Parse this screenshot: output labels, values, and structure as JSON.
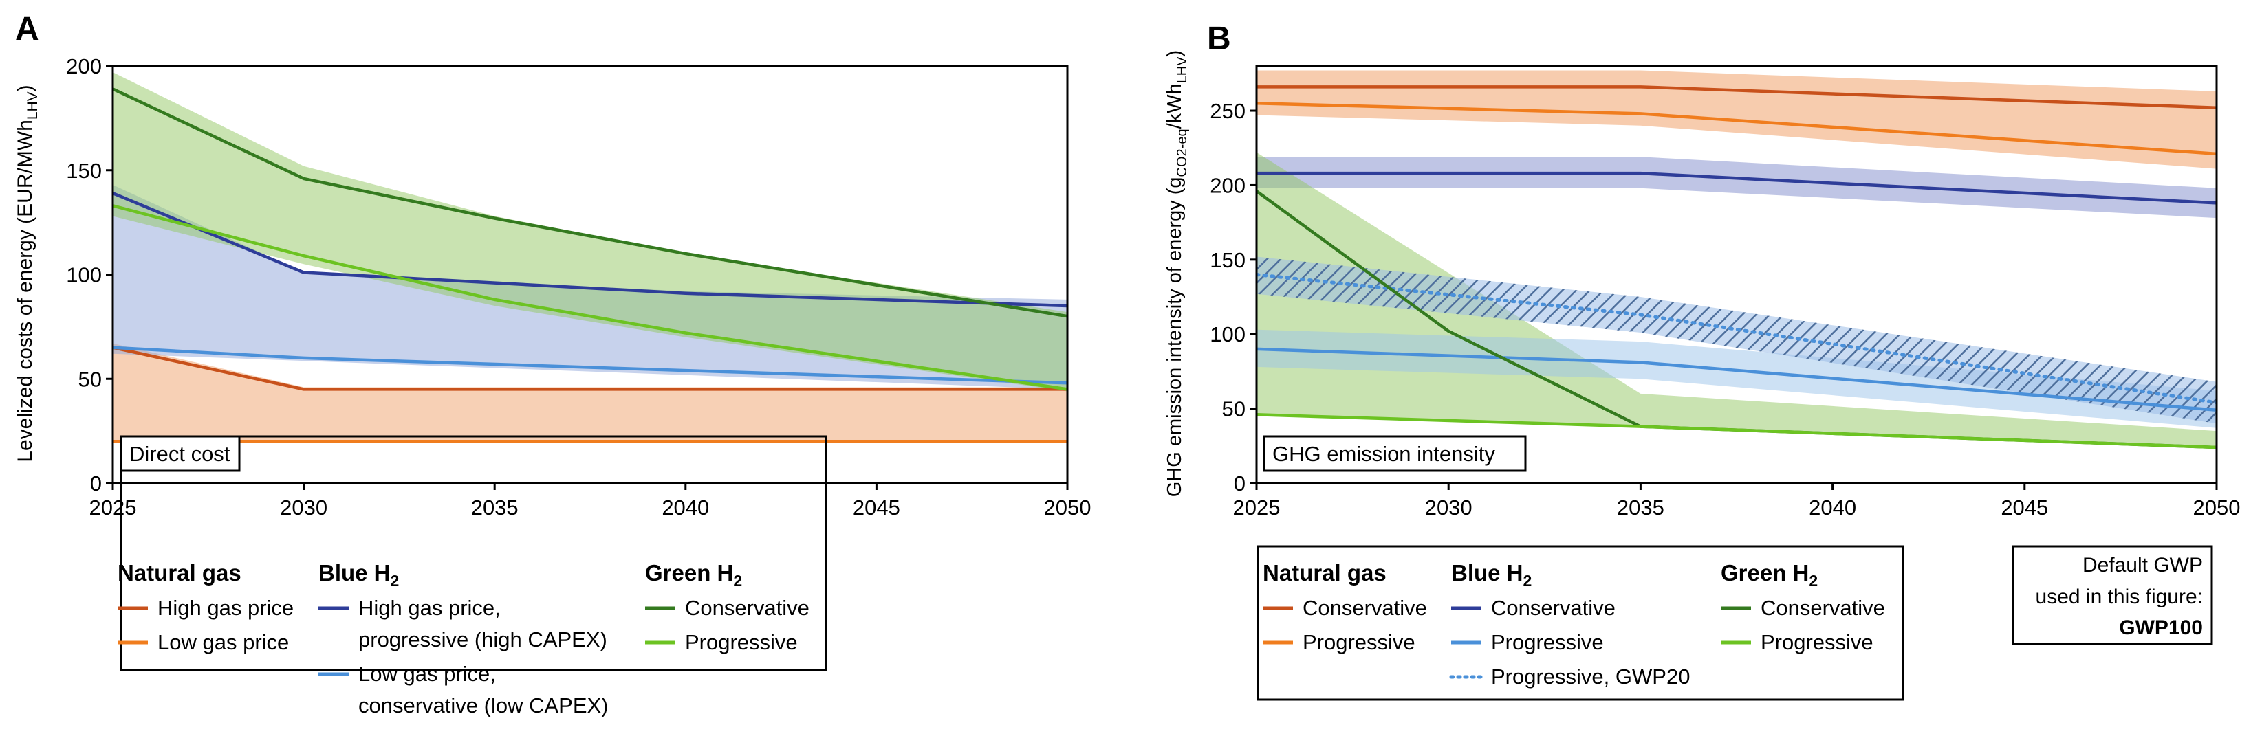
{
  "panel_a": {
    "letter": "A",
    "box_label": "Direct cost",
    "legend": {
      "groups": [
        {
          "title": "Natural gas",
          "entries": [
            {
              "label": "High gas price",
              "color": "#c8511b",
              "dash": false
            },
            {
              "label": "Low gas price",
              "color": "#f07d1e",
              "dash": false
            }
          ]
        },
        {
          "title": "Blue H",
          "title_sub": "2",
          "entries": [
            {
              "label": "High gas price,",
              "label2": "progressive (high CAPEX)",
              "color": "#2e3d99",
              "dash": false
            },
            {
              "label": "Low gas price,",
              "label2": "conservative (low CAPEX)",
              "color": "#4a90d9",
              "dash": false
            }
          ]
        },
        {
          "title": "Green H",
          "title_sub": "2",
          "entries": [
            {
              "label": "Conservative",
              "color": "#347a1f",
              "dash": false
            },
            {
              "label": "Progressive",
              "color": "#6cc322",
              "dash": false
            }
          ]
        }
      ]
    }
  },
  "panel_b": {
    "letter": "B",
    "box_label": "GHG emission intensity",
    "legend": {
      "groups": [
        {
          "title": "Natural gas",
          "entries": [
            {
              "label": "Conservative",
              "color": "#c8511b",
              "dash": false
            },
            {
              "label": "Progressive",
              "color": "#f07d1e",
              "dash": false
            }
          ]
        },
        {
          "title": "Blue H",
          "title_sub": "2",
          "entries": [
            {
              "label": "Conservative",
              "color": "#2e3d99",
              "dash": false
            },
            {
              "label": "Progressive",
              "color": "#4a90d9",
              "dash": false
            },
            {
              "label": "Progressive, GWP20",
              "color": "#4a90d9",
              "dash": true
            }
          ]
        },
        {
          "title": "Green H",
          "title_sub": "2",
          "entries": [
            {
              "label": "Conservative",
              "color": "#347a1f",
              "dash": false
            },
            {
              "label": "Progressive",
              "color": "#6cc322",
              "dash": false
            }
          ]
        }
      ]
    },
    "gwp_note": {
      "line1": "Default GWP",
      "line2": "used in this figure:",
      "line3": "GWP100"
    }
  },
  "chart_data": [
    {
      "type": "line",
      "title": "Direct cost",
      "xlabel": "",
      "ylabel": "Levelized costs of energy (EUR/MWh",
      "ylabel_sub": "LHV",
      "ylabel_end": ")",
      "xlim": [
        2025,
        2050
      ],
      "ylim": [
        0,
        200
      ],
      "xticks": [
        2025,
        2030,
        2035,
        2040,
        2045,
        2050
      ],
      "yticks": [
        0,
        50,
        100,
        150,
        200
      ],
      "bands": [
        {
          "name": "Natural gas range",
          "color": "#f0a26b",
          "opacity": 0.5,
          "upper": [
            [
              2025,
              67
            ],
            [
              2030,
              46
            ],
            [
              2050,
              46
            ]
          ],
          "lower": [
            [
              2025,
              20
            ],
            [
              2050,
              20
            ]
          ]
        },
        {
          "name": "Blue H2 range",
          "color": "#8fa6d9",
          "opacity": 0.5,
          "upper": [
            [
              2025,
              143
            ],
            [
              2030,
              101
            ],
            [
              2040,
              92
            ],
            [
              2050,
              88
            ]
          ],
          "lower": [
            [
              2025,
              62
            ],
            [
              2050,
              45
            ]
          ]
        },
        {
          "name": "Green H2 range",
          "color": "#93c763",
          "opacity": 0.5,
          "upper": [
            [
              2025,
              197
            ],
            [
              2030,
              152
            ],
            [
              2035,
              128
            ],
            [
              2040,
              110
            ],
            [
              2050,
              82
            ]
          ],
          "lower": [
            [
              2025,
              128
            ],
            [
              2030,
              105
            ],
            [
              2035,
              85
            ],
            [
              2040,
              70
            ],
            [
              2050,
              44
            ]
          ]
        }
      ],
      "series": [
        {
          "name": "Natural gas, High gas price",
          "color": "#c8511b",
          "dash": false,
          "x": [
            2025,
            2030,
            2050
          ],
          "y": [
            65,
            45,
            45
          ]
        },
        {
          "name": "Natural gas, Low gas price",
          "color": "#f07d1e",
          "dash": false,
          "x": [
            2025,
            2050
          ],
          "y": [
            20,
            20
          ]
        },
        {
          "name": "Blue H2, High gas price, progressive (high CAPEX)",
          "color": "#2e3d99",
          "dash": false,
          "x": [
            2025,
            2030,
            2040,
            2050
          ],
          "y": [
            139,
            101,
            91,
            85
          ]
        },
        {
          "name": "Blue H2, Low gas price, conservative (low CAPEX)",
          "color": "#4a90d9",
          "dash": false,
          "x": [
            2025,
            2030,
            2050
          ],
          "y": [
            65,
            60,
            48
          ]
        },
        {
          "name": "Green H2, Conservative",
          "color": "#347a1f",
          "dash": false,
          "x": [
            2025,
            2030,
            2035,
            2040,
            2050
          ],
          "y": [
            189,
            146,
            127,
            110,
            80
          ]
        },
        {
          "name": "Green H2, Progressive",
          "color": "#6cc322",
          "dash": false,
          "x": [
            2025,
            2030,
            2035,
            2040,
            2050
          ],
          "y": [
            133,
            109,
            88,
            72,
            45
          ]
        }
      ]
    },
    {
      "type": "line",
      "title": "GHG emission intensity",
      "xlabel": "",
      "ylabel": "GHG emission intensity of energy (g",
      "ylabel_sub": "CO2-eq",
      "ylabel_mid": "/kWh",
      "ylabel_sub2": "LHV",
      "ylabel_end": ")",
      "xlim": [
        2025,
        2050
      ],
      "ylim": [
        0,
        280
      ],
      "xticks": [
        2025,
        2030,
        2035,
        2040,
        2045,
        2050
      ],
      "yticks": [
        0,
        50,
        100,
        150,
        200,
        250
      ],
      "bands": [
        {
          "name": "Natural gas range",
          "color": "#f0a26b",
          "opacity": 0.55,
          "upper": [
            [
              2025,
              277
            ],
            [
              2035,
              277
            ],
            [
              2050,
              263
            ]
          ],
          "lower": [
            [
              2025,
              247
            ],
            [
              2035,
              240
            ],
            [
              2050,
              211
            ]
          ]
        },
        {
          "name": "Blue H2 conservative range",
          "color": "#7f8bcc",
          "opacity": 0.5,
          "upper": [
            [
              2025,
              219
            ],
            [
              2035,
              219
            ],
            [
              2050,
              198
            ]
          ],
          "lower": [
            [
              2025,
              198
            ],
            [
              2035,
              198
            ],
            [
              2050,
              178
            ]
          ]
        },
        {
          "name": "Green H2 range",
          "color": "#93c763",
          "opacity": 0.5,
          "upper": [
            [
              2025,
              222
            ],
            [
              2035,
              60
            ],
            [
              2050,
              35
            ]
          ],
          "lower": [
            [
              2025,
              45
            ],
            [
              2035,
              38
            ],
            [
              2050,
              24
            ]
          ]
        },
        {
          "name": "Blue H2 progressive range",
          "color": "#9cc3ea",
          "opacity": 0.5,
          "upper": [
            [
              2025,
              103
            ],
            [
              2035,
              95
            ],
            [
              2050,
              62
            ]
          ],
          "lower": [
            [
              2025,
              78
            ],
            [
              2035,
              70
            ],
            [
              2050,
              37
            ]
          ]
        },
        {
          "name": "Blue H2 progressive GWP20 range",
          "color": "#7fa9d6",
          "opacity": 0.45,
          "hatch": true,
          "upper": [
            [
              2025,
              152
            ],
            [
              2035,
              125
            ],
            [
              2050,
              68
            ]
          ],
          "lower": [
            [
              2025,
              127
            ],
            [
              2035,
              101
            ],
            [
              2050,
              40
            ]
          ]
        }
      ],
      "series": [
        {
          "name": "Natural gas, Conservative",
          "color": "#c8511b",
          "dash": false,
          "x": [
            2025,
            2035,
            2050
          ],
          "y": [
            266,
            266,
            252
          ]
        },
        {
          "name": "Natural gas, Progressive",
          "color": "#f07d1e",
          "dash": false,
          "x": [
            2025,
            2035,
            2050
          ],
          "y": [
            255,
            248,
            221
          ]
        },
        {
          "name": "Blue H2, Conservative",
          "color": "#2e3d99",
          "dash": false,
          "x": [
            2025,
            2035,
            2050
          ],
          "y": [
            208,
            208,
            188
          ]
        },
        {
          "name": "Blue H2, Progressive",
          "color": "#4a90d9",
          "dash": false,
          "x": [
            2025,
            2035,
            2050
          ],
          "y": [
            90,
            81,
            49
          ]
        },
        {
          "name": "Blue H2, Progressive, GWP20",
          "color": "#4a90d9",
          "dash": true,
          "x": [
            2025,
            2035,
            2050
          ],
          "y": [
            140,
            113,
            54
          ]
        },
        {
          "name": "Green H2, Conservative",
          "color": "#347a1f",
          "dash": false,
          "x": [
            2025,
            2030,
            2035,
            2050
          ],
          "y": [
            196,
            102,
            38,
            24
          ]
        },
        {
          "name": "Green H2, Progressive",
          "color": "#6cc322",
          "dash": false,
          "x": [
            2025,
            2035,
            2050
          ],
          "y": [
            46,
            38,
            24
          ]
        }
      ]
    }
  ]
}
